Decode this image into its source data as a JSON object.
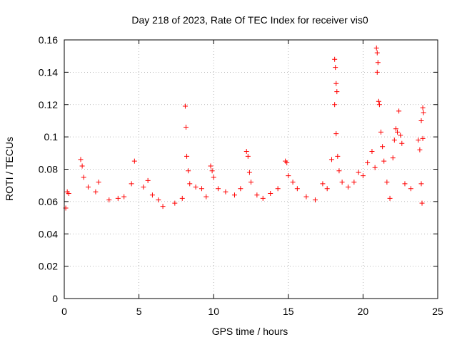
{
  "chart_data": {
    "type": "scatter",
    "title": "Day 218 of 2023, Rate Of TEC Index for receiver vis0",
    "xlabel": "GPS time / hours",
    "ylabel": "ROTI / TECUs",
    "xlim": [
      0,
      25
    ],
    "ylim": [
      0,
      0.16
    ],
    "x_ticks": [
      "0",
      "5",
      "10",
      "15",
      "20",
      "25"
    ],
    "y_ticks": [
      "0",
      "0.02",
      "0.04",
      "0.06",
      "0.08",
      "0.1",
      "0.12",
      "0.14",
      "0.16"
    ],
    "x_tick_values": [
      0,
      5,
      10,
      15,
      20,
      25
    ],
    "y_tick_values": [
      0,
      0.02,
      0.04,
      0.06,
      0.08,
      0.1,
      0.12,
      0.14,
      0.16
    ],
    "grid": true,
    "marker": "+",
    "color": "#ff0000",
    "series": [
      {
        "points": [
          [
            0.1,
            0.056
          ],
          [
            0.2,
            0.066
          ],
          [
            0.3,
            0.065
          ],
          [
            1.1,
            0.086
          ],
          [
            1.2,
            0.082
          ],
          [
            1.3,
            0.075
          ],
          [
            1.6,
            0.069
          ],
          [
            2.1,
            0.066
          ],
          [
            2.3,
            0.072
          ],
          [
            3.0,
            0.061
          ],
          [
            3.6,
            0.062
          ],
          [
            4.0,
            0.063
          ],
          [
            4.5,
            0.071
          ],
          [
            4.7,
            0.085
          ],
          [
            5.3,
            0.069
          ],
          [
            5.6,
            0.073
          ],
          [
            5.9,
            0.064
          ],
          [
            6.3,
            0.061
          ],
          [
            6.6,
            0.057
          ],
          [
            7.4,
            0.059
          ],
          [
            7.9,
            0.062
          ],
          [
            8.1,
            0.119
          ],
          [
            8.15,
            0.106
          ],
          [
            8.2,
            0.088
          ],
          [
            8.3,
            0.079
          ],
          [
            8.4,
            0.071
          ],
          [
            8.8,
            0.069
          ],
          [
            9.2,
            0.068
          ],
          [
            9.5,
            0.063
          ],
          [
            9.8,
            0.082
          ],
          [
            9.9,
            0.079
          ],
          [
            10.0,
            0.075
          ],
          [
            10.3,
            0.068
          ],
          [
            10.8,
            0.066
          ],
          [
            11.4,
            0.064
          ],
          [
            11.8,
            0.068
          ],
          [
            12.2,
            0.091
          ],
          [
            12.3,
            0.088
          ],
          [
            12.4,
            0.078
          ],
          [
            12.5,
            0.072
          ],
          [
            12.9,
            0.064
          ],
          [
            13.3,
            0.062
          ],
          [
            13.8,
            0.065
          ],
          [
            14.3,
            0.068
          ],
          [
            14.8,
            0.085
          ],
          [
            14.9,
            0.084
          ],
          [
            15.0,
            0.076
          ],
          [
            15.3,
            0.072
          ],
          [
            15.6,
            0.068
          ],
          [
            16.2,
            0.063
          ],
          [
            16.8,
            0.061
          ],
          [
            17.3,
            0.071
          ],
          [
            17.6,
            0.068
          ],
          [
            17.9,
            0.086
          ],
          [
            18.1,
            0.148
          ],
          [
            18.15,
            0.143
          ],
          [
            18.2,
            0.133
          ],
          [
            18.25,
            0.128
          ],
          [
            18.1,
            0.12
          ],
          [
            18.2,
            0.102
          ],
          [
            18.3,
            0.088
          ],
          [
            18.4,
            0.079
          ],
          [
            18.6,
            0.072
          ],
          [
            19.0,
            0.069
          ],
          [
            19.4,
            0.072
          ],
          [
            19.7,
            0.078
          ],
          [
            20.0,
            0.076
          ],
          [
            20.3,
            0.084
          ],
          [
            20.6,
            0.091
          ],
          [
            20.8,
            0.081
          ],
          [
            20.9,
            0.155
          ],
          [
            20.95,
            0.152
          ],
          [
            21.0,
            0.146
          ],
          [
            20.95,
            0.14
          ],
          [
            21.05,
            0.122
          ],
          [
            21.1,
            0.12
          ],
          [
            21.2,
            0.103
          ],
          [
            21.3,
            0.094
          ],
          [
            21.4,
            0.085
          ],
          [
            21.6,
            0.072
          ],
          [
            21.8,
            0.062
          ],
          [
            22.0,
            0.087
          ],
          [
            22.1,
            0.098
          ],
          [
            22.2,
            0.105
          ],
          [
            22.3,
            0.103
          ],
          [
            22.4,
            0.116
          ],
          [
            22.5,
            0.101
          ],
          [
            22.6,
            0.096
          ],
          [
            22.8,
            0.071
          ],
          [
            23.2,
            0.068
          ],
          [
            23.7,
            0.098
          ],
          [
            23.8,
            0.092
          ],
          [
            23.9,
            0.11
          ],
          [
            24.0,
            0.118
          ],
          [
            24.05,
            0.115
          ],
          [
            24.0,
            0.099
          ],
          [
            23.9,
            0.071
          ],
          [
            23.95,
            0.059
          ]
        ]
      }
    ]
  }
}
